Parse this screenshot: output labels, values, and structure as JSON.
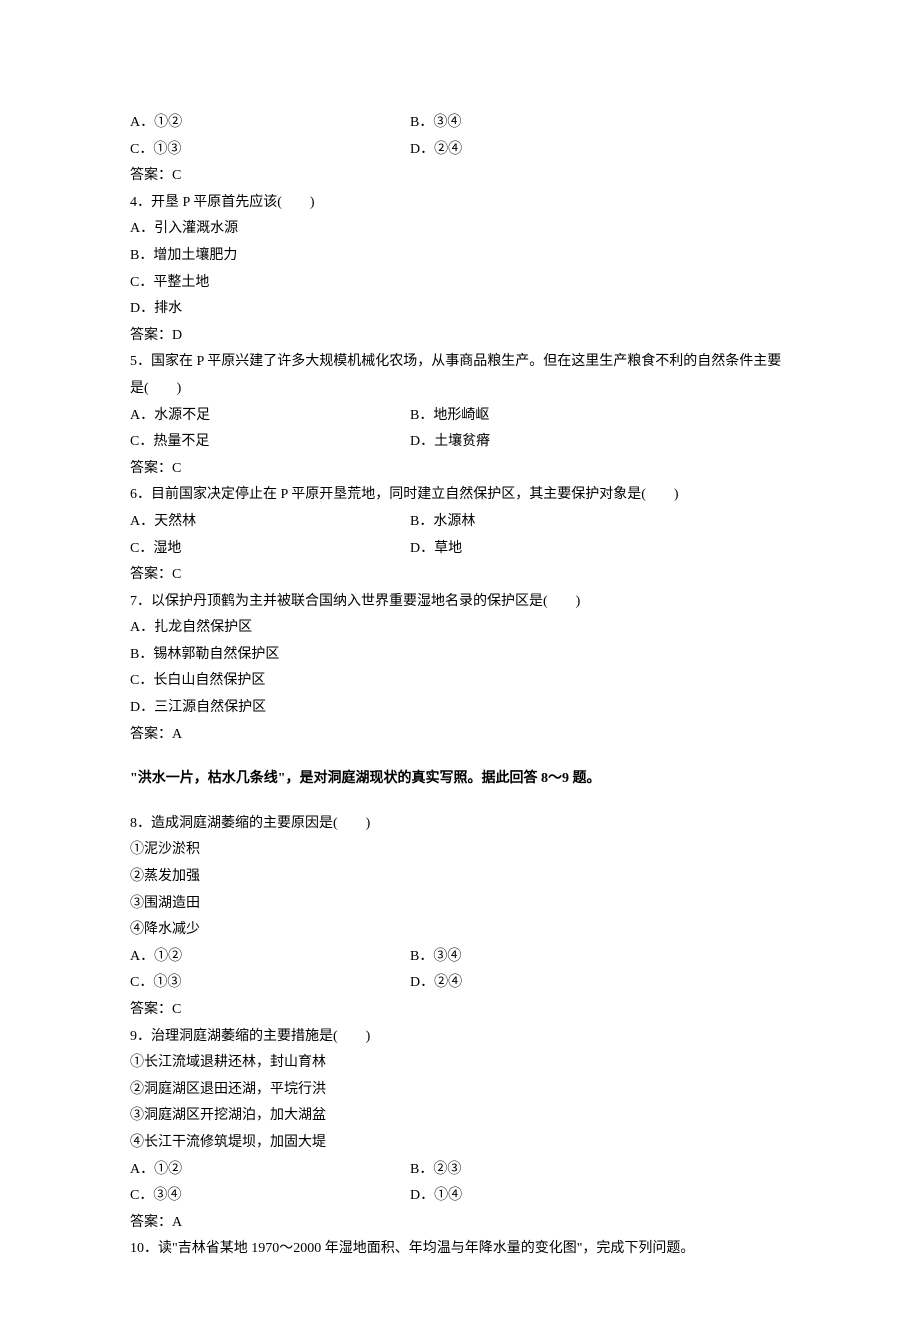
{
  "q3_options": {
    "A": "A．①②",
    "B": "B．③④",
    "C": "C．①③",
    "D": "D．②④"
  },
  "q3_answer": "答案：C",
  "q4": {
    "stem": "4．开垦 P 平原首先应该(　　)",
    "A": "A．引入灌溉水源",
    "B": "B．增加土壤肥力",
    "C": "C．平整土地",
    "D": "D．排水",
    "answer": "答案：D"
  },
  "q5": {
    "stem": "5．国家在 P 平原兴建了许多大规模机械化农场，从事商品粮生产。但在这里生产粮食不利的自然条件主要是(　　)",
    "A": "A．水源不足",
    "B": "B．地形崎岖",
    "C": "C．热量不足",
    "D": "D．土壤贫瘠",
    "answer": "答案：C"
  },
  "q6": {
    "stem": "6．目前国家决定停止在 P 平原开垦荒地，同时建立自然保护区，其主要保护对象是(　　)",
    "A": "A．天然林",
    "B": "B．水源林",
    "C": "C．湿地",
    "D": "D．草地",
    "answer": "答案：C"
  },
  "q7": {
    "stem": "7．以保护丹顶鹤为主并被联合国纳入世界重要湿地名录的保护区是(　　)",
    "A": "A．扎龙自然保护区",
    "B": "B．锡林郭勒自然保护区",
    "C": "C．长白山自然保护区",
    "D": "D．三江源自然保护区",
    "answer": "答案：A"
  },
  "passage8_9": "\"洪水一片，枯水几条线\"，是对洞庭湖现状的真实写照。据此回答 8～9 题。",
  "q8": {
    "stem": "8．造成洞庭湖萎缩的主要原因是(　　)",
    "opt1": "①泥沙淤积",
    "opt2": "②蒸发加强",
    "opt3": "③围湖造田",
    "opt4": "④降水减少",
    "A": "A．①②",
    "B": "B．③④",
    "C": "C．①③",
    "D": "D．②④",
    "answer": "答案：C"
  },
  "q9": {
    "stem": "9．治理洞庭湖萎缩的主要措施是(　　)",
    "opt1": "①长江流域退耕还林，封山育林",
    "opt2": "②洞庭湖区退田还湖，平垸行洪",
    "opt3": "③洞庭湖区开挖湖泊，加大湖盆",
    "opt4": "④长江干流修筑堤坝，加固大堤",
    "A": "A．①②",
    "B": "B．②③",
    "C": "C．③④",
    "D": "D．①④",
    "answer": "答案：A"
  },
  "q10": {
    "stem": "10．读\"吉林省某地 1970～2000 年湿地面积、年均温与年降水量的变化图\"，完成下列问题。"
  }
}
